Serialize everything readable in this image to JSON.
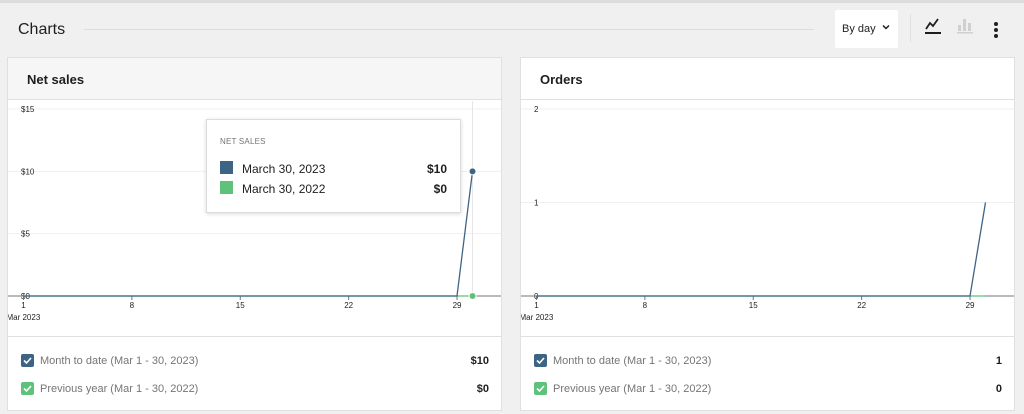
{
  "header": {
    "title": "Charts",
    "interval_label": "By day",
    "icons": [
      "line-chart-icon",
      "bar-chart-icon",
      "more-vertical-icon"
    ]
  },
  "colors": {
    "primary": "#3e6485",
    "secondary": "#5ec27a",
    "axis": "#757575",
    "grid": "#efefef"
  },
  "chart_data": [
    {
      "type": "line",
      "title": "Net sales",
      "x": [
        1,
        2,
        3,
        4,
        5,
        6,
        7,
        8,
        9,
        10,
        11,
        12,
        13,
        14,
        15,
        16,
        17,
        18,
        19,
        20,
        21,
        22,
        23,
        24,
        25,
        26,
        27,
        28,
        29,
        30
      ],
      "x_ticks": [
        "1",
        "8",
        "15",
        "22",
        "29"
      ],
      "x_tick_values": [
        1,
        8,
        15,
        22,
        29
      ],
      "x_sublabel": "Mar 2023",
      "y_ticks": [
        "$0",
        "$5",
        "$10",
        "$15"
      ],
      "y_tick_values": [
        0,
        5,
        10,
        15
      ],
      "ylim": [
        0,
        15
      ],
      "xlim": [
        0,
        31
      ],
      "grid": true,
      "series": [
        {
          "name": "Month to date (Mar 1 - 30, 2023)",
          "values": [
            0,
            0,
            0,
            0,
            0,
            0,
            0,
            0,
            0,
            0,
            0,
            0,
            0,
            0,
            0,
            0,
            0,
            0,
            0,
            0,
            0,
            0,
            0,
            0,
            0,
            0,
            0,
            0,
            0,
            10
          ]
        },
        {
          "name": "Previous year (Mar 1 - 30, 2022)",
          "values": [
            0,
            0,
            0,
            0,
            0,
            0,
            0,
            0,
            0,
            0,
            0,
            0,
            0,
            0,
            0,
            0,
            0,
            0,
            0,
            0,
            0,
            0,
            0,
            0,
            0,
            0,
            0,
            0,
            0,
            0
          ]
        }
      ],
      "hover_x": 30,
      "tooltip": {
        "title": "NET SALES",
        "rows": [
          {
            "label": "March 30, 2023",
            "value": "$10"
          },
          {
            "label": "March 30, 2022",
            "value": "$0"
          }
        ]
      },
      "legend": [
        {
          "label": "Month to date (Mar 1 - 30, 2023)",
          "value": "$10"
        },
        {
          "label": "Previous year (Mar 1 - 30, 2022)",
          "value": "$0"
        }
      ]
    },
    {
      "type": "line",
      "title": "Orders",
      "x": [
        1,
        2,
        3,
        4,
        5,
        6,
        7,
        8,
        9,
        10,
        11,
        12,
        13,
        14,
        15,
        16,
        17,
        18,
        19,
        20,
        21,
        22,
        23,
        24,
        25,
        26,
        27,
        28,
        29,
        30
      ],
      "x_ticks": [
        "1",
        "8",
        "15",
        "22",
        "29"
      ],
      "x_tick_values": [
        1,
        8,
        15,
        22,
        29
      ],
      "x_sublabel": "Mar 2023",
      "y_ticks": [
        "0",
        "1",
        "2"
      ],
      "y_tick_values": [
        0,
        1,
        2
      ],
      "ylim": [
        0,
        2
      ],
      "xlim": [
        0,
        31
      ],
      "grid": true,
      "series": [
        {
          "name": "Month to date (Mar 1 - 30, 2023)",
          "values": [
            0,
            0,
            0,
            0,
            0,
            0,
            0,
            0,
            0,
            0,
            0,
            0,
            0,
            0,
            0,
            0,
            0,
            0,
            0,
            0,
            0,
            0,
            0,
            0,
            0,
            0,
            0,
            0,
            0,
            1
          ]
        },
        {
          "name": "Previous year (Mar 1 - 30, 2022)",
          "values": [
            0,
            0,
            0,
            0,
            0,
            0,
            0,
            0,
            0,
            0,
            0,
            0,
            0,
            0,
            0,
            0,
            0,
            0,
            0,
            0,
            0,
            0,
            0,
            0,
            0,
            0,
            0,
            0,
            0,
            0
          ]
        }
      ],
      "legend": [
        {
          "label": "Month to date (Mar 1 - 30, 2023)",
          "value": "1"
        },
        {
          "label": "Previous year (Mar 1 - 30, 2022)",
          "value": "0"
        }
      ]
    }
  ]
}
